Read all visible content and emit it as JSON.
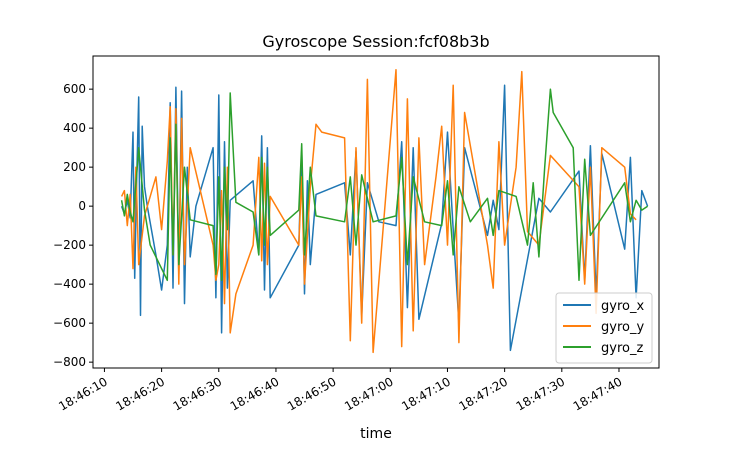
{
  "chart_data": {
    "type": "line",
    "title": "Gyroscope Session:fcf08b3b",
    "xlabel": "time",
    "ylabel": "",
    "x_range": [
      "18:46:08",
      "18:47:47"
    ],
    "ylim": [
      -830,
      770
    ],
    "y_ticks": [
      -800,
      -600,
      -400,
      -200,
      0,
      200,
      400,
      600
    ],
    "x_ticks": [
      "18:46:10",
      "18:46:20",
      "18:46:30",
      "18:46:40",
      "18:46:50",
      "18:47:00",
      "18:47:10",
      "18:47:20",
      "18:47:30",
      "18:47:40"
    ],
    "grid": false,
    "legend_position": "lower-right",
    "series": [
      {
        "name": "gyro_x",
        "color": "#1f77b4",
        "x": [
          "18:46:13",
          "18:46:13.5",
          "18:46:14",
          "18:46:14.5",
          "18:46:15",
          "18:46:15.3",
          "18:46:15.6",
          "18:46:16",
          "18:46:16.3",
          "18:46:16.6",
          "18:46:17",
          "18:46:17.5",
          "18:46:19",
          "18:46:20",
          "18:46:21",
          "18:46:21.5",
          "18:46:22",
          "18:46:22.5",
          "18:46:23",
          "18:46:23.5",
          "18:46:24",
          "18:46:24.5",
          "18:46:25",
          "18:46:26",
          "18:46:29",
          "18:46:29.5",
          "18:46:30",
          "18:46:30.5",
          "18:46:31",
          "18:46:31.5",
          "18:46:32",
          "18:46:36",
          "18:46:37",
          "18:46:37.5",
          "18:46:38",
          "18:46:38.5",
          "18:46:39",
          "18:46:44",
          "18:46:44.5",
          "18:46:45",
          "18:46:45.5",
          "18:46:46",
          "18:46:47",
          "18:46:52",
          "18:46:53",
          "18:46:54",
          "18:46:55",
          "18:46:56",
          "18:46:58",
          "18:47:01",
          "18:47:02",
          "18:47:03",
          "18:47:04",
          "18:47:05",
          "18:47:09",
          "18:47:10",
          "18:47:11",
          "18:47:12",
          "18:47:13",
          "18:47:17",
          "18:47:18",
          "18:47:19",
          "18:47:20",
          "18:47:21",
          "18:47:26",
          "18:47:28",
          "18:47:33",
          "18:47:34",
          "18:47:35",
          "18:47:36",
          "18:47:37",
          "18:47:41",
          "18:47:42",
          "18:47:43",
          "18:47:44",
          "18:47:45"
        ],
        "y": [
          0,
          -40,
          30,
          -60,
          380,
          -370,
          100,
          560,
          -560,
          410,
          100,
          0,
          -250,
          -430,
          -200,
          530,
          -420,
          610,
          -350,
          590,
          -500,
          200,
          -260,
          0,
          300,
          -470,
          570,
          -650,
          330,
          -420,
          30,
          130,
          -250,
          360,
          -430,
          300,
          -470,
          -200,
          280,
          -450,
          130,
          -300,
          60,
          120,
          -250,
          280,
          -560,
          120,
          -80,
          -100,
          330,
          -520,
          300,
          -580,
          -90,
          380,
          -120,
          -600,
          300,
          -150,
          30,
          -120,
          620,
          -740,
          40,
          -30,
          180,
          -380,
          310,
          -460,
          270,
          -220,
          250,
          -470,
          80,
          0
        ],
        "color_note": ""
      },
      {
        "name": "gyro_y",
        "color": "#ff7f0e",
        "x": [
          "18:46:13",
          "18:46:13.5",
          "18:46:14",
          "18:46:14.5",
          "18:46:15",
          "18:46:15.5",
          "18:46:16",
          "18:46:17",
          "18:46:19",
          "18:46:20",
          "18:46:21",
          "18:46:21.5",
          "18:46:22",
          "18:46:22.5",
          "18:46:23",
          "18:46:23.5",
          "18:46:24",
          "18:46:25",
          "18:46:29",
          "18:46:29.5",
          "18:46:30",
          "18:46:30.5",
          "18:46:31",
          "18:46:31.5",
          "18:46:32",
          "18:46:33",
          "18:46:36",
          "18:46:37",
          "18:46:37.5",
          "18:46:38",
          "18:46:38.5",
          "18:46:39",
          "18:46:44",
          "18:46:44.5",
          "18:46:45",
          "18:46:46",
          "18:46:47",
          "18:46:48",
          "18:46:52",
          "18:46:53",
          "18:46:54",
          "18:46:55",
          "18:46:56",
          "18:46:57",
          "18:47:01",
          "18:47:02",
          "18:47:03",
          "18:47:04",
          "18:47:05",
          "18:47:06",
          "18:47:08",
          "18:47:09",
          "18:47:10",
          "18:47:11",
          "18:47:12",
          "18:47:13",
          "18:47:17",
          "18:47:18",
          "18:47:19",
          "18:47:20",
          "18:47:22",
          "18:47:23",
          "18:47:24",
          "18:47:26",
          "18:47:28",
          "18:47:33",
          "18:47:34",
          "18:47:35",
          "18:47:36",
          "18:47:37",
          "18:47:41",
          "18:47:42",
          "18:47:43"
        ],
        "y": [
          50,
          80,
          -100,
          60,
          -320,
          200,
          -300,
          -50,
          150,
          -120,
          230,
          510,
          -250,
          500,
          -400,
          450,
          -300,
          300,
          -200,
          -380,
          -300,
          80,
          -500,
          200,
          -650,
          -450,
          -200,
          250,
          -280,
          220,
          -300,
          50,
          -200,
          150,
          -400,
          100,
          420,
          380,
          350,
          -690,
          300,
          -600,
          650,
          -750,
          700,
          -720,
          550,
          -640,
          350,
          -300,
          150,
          410,
          -200,
          620,
          -700,
          480,
          -200,
          -420,
          330,
          -200,
          200,
          690,
          -130,
          -200,
          260,
          100,
          -400,
          200,
          -550,
          300,
          200,
          -40,
          -70
        ],
        "color_note": ""
      },
      {
        "name": "gyro_z",
        "color": "#2ca02c",
        "x": [
          "18:46:13",
          "18:46:13.5",
          "18:46:14",
          "18:46:14.5",
          "18:46:15",
          "18:46:16",
          "18:46:17",
          "18:46:18",
          "18:46:21",
          "18:46:21.5",
          "18:46:22",
          "18:46:22.5",
          "18:46:23",
          "18:46:24",
          "18:46:25",
          "18:46:29",
          "18:46:29.5",
          "18:46:30",
          "18:46:30.5",
          "18:46:31",
          "18:46:31.5",
          "18:46:32",
          "18:46:33",
          "18:46:36",
          "18:46:37",
          "18:46:37.5",
          "18:46:38",
          "18:46:38.5",
          "18:46:39",
          "18:46:44",
          "18:46:44.5",
          "18:46:45",
          "18:46:46",
          "18:46:47",
          "18:46:52",
          "18:46:53",
          "18:46:54",
          "18:46:55",
          "18:46:57",
          "18:47:01",
          "18:47:02",
          "18:47:03",
          "18:47:04",
          "18:47:06",
          "18:47:09",
          "18:47:10",
          "18:47:11",
          "18:47:12",
          "18:47:14",
          "18:47:17",
          "18:47:18",
          "18:47:19",
          "18:47:22",
          "18:47:24",
          "18:47:25",
          "18:47:26",
          "18:47:27",
          "18:47:28",
          "18:47:28.5",
          "18:47:32",
          "18:47:33",
          "18:47:34",
          "18:47:35",
          "18:47:41",
          "18:47:42",
          "18:47:43",
          "18:47:44",
          "18:47:45"
        ],
        "y": [
          30,
          -50,
          60,
          -30,
          -80,
          300,
          -20,
          -200,
          -380,
          350,
          -250,
          420,
          -300,
          200,
          -70,
          -100,
          -350,
          150,
          -380,
          200,
          -120,
          580,
          20,
          -30,
          -250,
          250,
          -200,
          200,
          -150,
          -20,
          320,
          -250,
          200,
          -50,
          -80,
          150,
          -200,
          160,
          -80,
          -50,
          250,
          -300,
          150,
          -80,
          -100,
          130,
          -250,
          100,
          -80,
          40,
          -150,
          80,
          50,
          -200,
          120,
          -260,
          200,
          600,
          480,
          300,
          -380,
          240,
          -150,
          120,
          -80,
          30,
          -20,
          0
        ]
      }
    ]
  },
  "legend": {
    "items": [
      "gyro_x",
      "gyro_y",
      "gyro_z"
    ]
  }
}
